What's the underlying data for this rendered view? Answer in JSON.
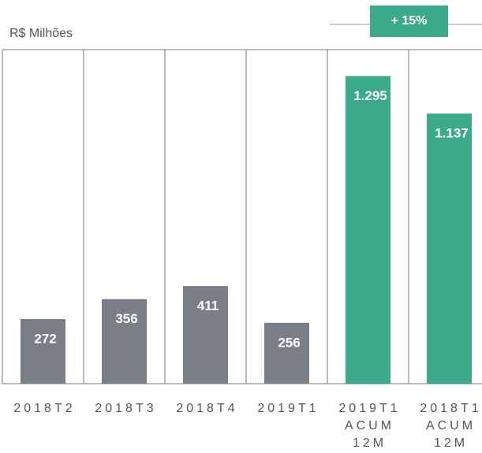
{
  "chart_data": {
    "type": "bar",
    "ylabel": "R$ Milhões",
    "annotation": "+ 15%",
    "categories": [
      "2018T2",
      "2018T3",
      "2018T4",
      "2019T1",
      "2019T1 ACUM 12M",
      "2018T1 ACUM 12M"
    ],
    "values": [
      272,
      356,
      411,
      256,
      1295,
      1137
    ],
    "value_labels": [
      "272",
      "356",
      "411",
      "256",
      "1.295",
      "1.137"
    ],
    "colors": [
      "#7a7f87",
      "#7a7f87",
      "#7a7f87",
      "#7a7f87",
      "#3aaa8a",
      "#3aaa8a"
    ]
  }
}
